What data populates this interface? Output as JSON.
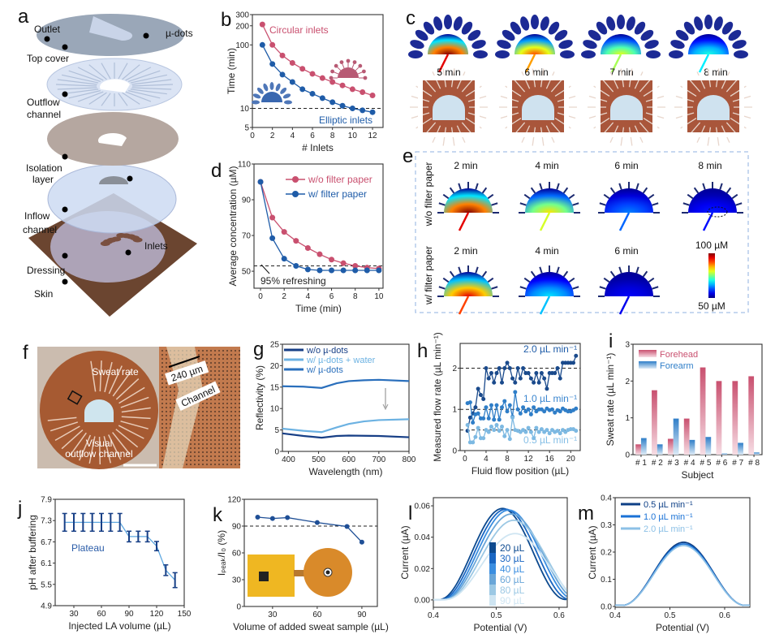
{
  "panel_a": {
    "panel": "a",
    "labels": [
      "Outlet",
      "µ-dots",
      "Top cover",
      "Outflow",
      "channel",
      "Isolation",
      "layer",
      "Inflow",
      "channel",
      "Inlets",
      "Dressing",
      "Skin"
    ]
  },
  "panel_c": {
    "panel": "c",
    "times": [
      "5 min",
      "6 min",
      "7 min",
      "8 min"
    ],
    "relative_intensity": [
      1.0,
      0.8,
      0.6,
      0.4
    ]
  },
  "panel_e": {
    "panel": "e",
    "row_labels": [
      "w/o filter paper",
      "w/ filter paper"
    ],
    "row1_times": [
      "2 min",
      "4 min",
      "6 min",
      "8 min"
    ],
    "row1_intensity": [
      1.0,
      0.65,
      0.25,
      0.15
    ],
    "row2_times": [
      "2 min",
      "4 min",
      "6 min"
    ],
    "row2_intensity": [
      0.9,
      0.35,
      0.12
    ],
    "colorbar_max": "100 µM",
    "colorbar_min": "50 µM"
  },
  "panel_f": {
    "panel": "f",
    "sweat_rate": "Sweat rate",
    "visual_line1": "Visual",
    "visual_line2": "outflow channel",
    "scale_label": "240 µm",
    "channel_label": "Channel"
  },
  "chart_data": [
    {
      "id": "b",
      "panel": "b",
      "type": "line",
      "xlabel": "# Inlets",
      "ylabel": "Time (min)",
      "yscale": "log",
      "xlim": [
        0,
        13.05
      ],
      "ylim": [
        5,
        300
      ],
      "xticks": [
        "0",
        "2",
        "4",
        "6",
        "8",
        "10",
        "12"
      ],
      "yticks": [
        "5",
        "10",
        "100",
        "200",
        "300"
      ],
      "reference_lines": [
        {
          "y": 10
        }
      ],
      "series": [
        {
          "name": "Circular inlets",
          "color": "#c9506f",
          "x": [
            1,
            2,
            3,
            4,
            5,
            6,
            7,
            8,
            9,
            10,
            11,
            12
          ],
          "y": [
            210,
            100,
            68,
            52,
            42,
            35,
            30,
            26,
            23,
            20,
            18,
            16
          ]
        },
        {
          "name": "Elliptic inlets",
          "color": "#1f5ca8",
          "x": [
            1,
            2,
            3,
            4,
            5,
            6,
            7,
            8,
            9,
            10,
            11,
            12
          ],
          "y": [
            100,
            50,
            34,
            26,
            20,
            17,
            14.5,
            12.5,
            11,
            10,
            9.3,
            8.7
          ]
        }
      ],
      "annotations": [
        {
          "text": "Circular inlets",
          "color": "#c9506f"
        },
        {
          "text": "Elliptic inlets",
          "color": "#1f5ca8"
        }
      ]
    },
    {
      "id": "d",
      "panel": "d",
      "type": "line",
      "xlabel": "Time (min)",
      "ylabel": "Average concentration (µM)",
      "xlim": [
        -0.55,
        10.35
      ],
      "ylim": [
        40.5,
        110
      ],
      "xticks": [
        "0",
        "2",
        "4",
        "6",
        "8",
        "10"
      ],
      "yticks": [
        "50",
        "70",
        "90",
        "110"
      ],
      "reference_lines": [
        {
          "y": 53
        }
      ],
      "series": [
        {
          "name": "w/o filter paper",
          "color": "#c9506f",
          "x": [
            0,
            1,
            2,
            3,
            4,
            5,
            6,
            7,
            8,
            9,
            10
          ],
          "y": [
            100,
            80,
            72,
            67,
            63,
            59.5,
            56.5,
            54.5,
            53,
            52,
            51.5
          ]
        },
        {
          "name": "w/ filter paper",
          "color": "#1f5ca8",
          "x": [
            0,
            1,
            2,
            3,
            4,
            5,
            6,
            7,
            8,
            9,
            10
          ],
          "y": [
            100,
            68.5,
            57,
            53,
            51,
            50.5,
            50.5,
            50.5,
            50.5,
            50.5,
            50.5
          ]
        }
      ],
      "legend": "top-right",
      "annotations": [
        {
          "text": "95% refreshing",
          "color": "#222222"
        }
      ]
    },
    {
      "id": "g",
      "panel": "g",
      "type": "line",
      "xlabel": "Wavelength (nm)",
      "ylabel": "Reflectivity (%)",
      "xlim": [
        380,
        800
      ],
      "ylim": [
        0,
        25
      ],
      "xticks": [
        "400",
        "500",
        "600",
        "700",
        "800"
      ],
      "yticks": [
        "0",
        "5",
        "10",
        "15",
        "20",
        "25"
      ],
      "series": [
        {
          "name": "w/o µ-dots",
          "color": "#173f86",
          "x": [
            380,
            450,
            510,
            560,
            600,
            700,
            800
          ],
          "y": [
            4.2,
            3.6,
            3.2,
            3.6,
            3.7,
            3.6,
            3.3
          ]
        },
        {
          "name": "w/ µ-dots + water",
          "color": "#6cb2e2",
          "x": [
            380,
            450,
            510,
            560,
            600,
            650,
            700,
            800
          ],
          "y": [
            5.3,
            4.8,
            4.5,
            5.6,
            6.4,
            7.0,
            7.3,
            7.5
          ]
        },
        {
          "name": "w/ µ-dots",
          "color": "#2a6fbc",
          "x": [
            380,
            450,
            510,
            560,
            600,
            650,
            700,
            800
          ],
          "y": [
            15.2,
            15.1,
            14.8,
            15.9,
            16.4,
            16.6,
            16.7,
            16.4
          ]
        }
      ],
      "legend": "top-left"
    },
    {
      "id": "h",
      "panel": "h",
      "type": "line",
      "xlabel": "Fluid flow position (µL)",
      "ylabel": "Measured flow rate (µL min⁻¹)",
      "xlim": [
        -0.9,
        21.8
      ],
      "ylim": [
        0,
        2.6
      ],
      "xticks": [
        "0",
        "4",
        "8",
        "12",
        "16",
        "20"
      ],
      "yticks": [
        "0",
        "1",
        "2"
      ],
      "reference_lines": [
        {
          "y": 2
        },
        {
          "y": 1
        },
        {
          "y": 0.5
        }
      ],
      "series": [
        {
          "name": "2.0 µL min⁻¹",
          "color": "#1a4a8c",
          "x": [
            0.5,
            1,
            1.5,
            2,
            2.5,
            3,
            3.5,
            4,
            4.5,
            5,
            5.5,
            6,
            6.5,
            7,
            7.5,
            8,
            8.5,
            9,
            9.5,
            10,
            10.5,
            11,
            11.5,
            12,
            12.5,
            13,
            13.5,
            14,
            14.5,
            15,
            15.5,
            16,
            16.5,
            17,
            17.5,
            18,
            18.5,
            19,
            19.5,
            20,
            20.5,
            21
          ],
          "y": [
            0.48,
            0.8,
            0.9,
            1.05,
            1.5,
            1.35,
            1.25,
            2.0,
            1.75,
            1.88,
            1.65,
            1.88,
            2.0,
            1.65,
            2.0,
            2.13,
            2.0,
            1.75,
            1.65,
            2.0,
            1.75,
            2.0,
            1.88,
            1.88,
            1.75,
            1.65,
            1.88,
            1.65,
            1.88,
            1.75,
            1.5,
            1.88,
            1.88,
            1.88,
            2.0,
            1.75,
            2.13,
            2.13,
            2.13,
            2.13,
            2.13,
            2.3
          ]
        },
        {
          "name": "1.0 µL min⁻¹",
          "color": "#2f7ec8",
          "x": [
            0.5,
            1,
            1.5,
            2,
            2.5,
            3,
            3.5,
            4,
            4.5,
            5,
            5.5,
            6,
            6.5,
            7,
            7.5,
            8,
            8.5,
            9,
            9.5,
            10,
            10.5,
            11,
            11.5,
            12,
            12.5,
            13,
            13.5,
            14,
            14.5,
            15,
            15.5,
            16,
            16.5,
            17,
            17.5,
            18,
            18.5,
            19,
            19.5,
            20,
            20.5,
            21
          ],
          "y": [
            1.15,
            1.17,
            0.68,
            0.88,
            0.9,
            0.78,
            0.78,
            1.05,
            0.78,
            1.1,
            0.75,
            1.1,
            0.75,
            1.05,
            1.2,
            0.95,
            1.1,
            0.82,
            1.42,
            1.0,
            0.9,
            1.05,
            0.95,
            1.0,
            0.88,
            1.05,
            0.95,
            1.0,
            1.0,
            0.95,
            1.02,
            0.98,
            1.0,
            0.92,
            0.98,
            0.95,
            1.02,
            0.98,
            0.95,
            0.95,
            0.98,
            1.02
          ]
        },
        {
          "name": "0.5 µL min⁻¹",
          "color": "#7db9e2",
          "x": [
            0.5,
            1,
            1.5,
            2,
            2.5,
            3,
            3.5,
            4,
            4.5,
            5,
            5.5,
            6,
            6.5,
            7,
            7.5,
            8,
            8.5,
            9,
            9.5,
            10,
            10.5,
            11,
            11.5,
            12,
            12.5,
            13,
            13.5,
            14,
            14.5,
            15,
            15.5,
            16,
            16.5,
            17,
            17.5,
            18,
            18.5,
            19,
            19.5,
            20,
            20.5,
            21
          ],
          "y": [
            0.62,
            0.2,
            0.2,
            0.33,
            0.55,
            0.3,
            0.3,
            0.5,
            0.45,
            0.58,
            0.5,
            0.62,
            0.48,
            0.58,
            0.35,
            0.5,
            0.28,
            0.8,
            0.5,
            0.48,
            0.45,
            0.5,
            0.45,
            0.55,
            0.45,
            0.3,
            0.55,
            0.45,
            0.52,
            0.45,
            0.5,
            0.42,
            0.5,
            0.45,
            0.48,
            0.42,
            0.5,
            0.45,
            0.5,
            0.52,
            0.52,
            0.48
          ]
        }
      ],
      "annotations": [
        {
          "text": "2.0 µL min⁻¹",
          "color": "#1f5ca8"
        },
        {
          "text": "1.0 µL min⁻¹",
          "color": "#3b86cf"
        },
        {
          "text": "0.5 µL min⁻¹",
          "color": "#86bfe6"
        }
      ]
    },
    {
      "id": "i",
      "panel": "i",
      "type": "bar",
      "xlabel": "Subject",
      "ylabel": "Sweat rate (µL min⁻¹)",
      "ylim": [
        0,
        3
      ],
      "categories": [
        "# 1",
        "# 2",
        "# 3",
        "# 4",
        "# 5",
        "# 6",
        "# 7",
        "# 8"
      ],
      "yticks": [
        "0",
        "1",
        "2",
        "3"
      ],
      "series": [
        {
          "name": "Forehead",
          "color": "#c9506f",
          "values": [
            0.28,
            1.75,
            0.43,
            0.98,
            2.37,
            2.0,
            2.0,
            2.13
          ]
        },
        {
          "name": "Forearm",
          "color": "#2f7ec8",
          "values": [
            0.45,
            0.28,
            0.98,
            0.4,
            0.48,
            0.03,
            0.32,
            0.06
          ]
        }
      ],
      "legend": "top-left"
    },
    {
      "id": "j",
      "panel": "j",
      "type": "errorbar",
      "xlabel": "Injected LA volume (µL)",
      "ylabel": "pH after buffering",
      "xlim": [
        9.7,
        150
      ],
      "ylim": [
        4.9,
        7.9
      ],
      "xticks": [
        "30",
        "60",
        "90",
        "120",
        "150"
      ],
      "yticks": [
        "4.9",
        "5.5",
        "6.1",
        "6.7",
        "7.3",
        "7.9"
      ],
      "series": [
        {
          "name": "pH",
          "color": "#173f86",
          "fit_color": "#5fa8e0",
          "x": [
            20,
            30,
            40,
            50,
            60,
            70,
            80,
            90,
            100,
            110,
            120,
            130,
            140
          ],
          "y": [
            7.25,
            7.25,
            7.25,
            7.25,
            7.25,
            7.25,
            7.25,
            6.85,
            6.85,
            6.85,
            6.58,
            5.9,
            5.62
          ],
          "err": [
            0.25,
            0.25,
            0.25,
            0.25,
            0.25,
            0.25,
            0.25,
            0.15,
            0.15,
            0.15,
            0.13,
            0.15,
            0.21
          ]
        }
      ],
      "annotations": [
        {
          "text": "Plateau",
          "color": "#2a5ca8"
        }
      ]
    },
    {
      "id": "k",
      "panel": "k",
      "type": "line",
      "xlabel": "Volume of added sweat sample (µL)",
      "ylabel": "Iₚₑₐₖ/I₀ (%)",
      "xlim": [
        11,
        100.4
      ],
      "ylim": [
        0,
        120
      ],
      "xticks": [
        "30",
        "60",
        "90"
      ],
      "yticks": [
        "0",
        "30",
        "60",
        "90",
        "120"
      ],
      "reference_lines": [
        {
          "y": 90
        }
      ],
      "series": [
        {
          "name": "Ipeak/I0",
          "color": "#1f4f96",
          "x": [
            20,
            30,
            40,
            60,
            80,
            90
          ],
          "y": [
            100,
            98.5,
            99.5,
            94,
            89.5,
            72
          ]
        }
      ]
    },
    {
      "id": "l",
      "panel": "l",
      "type": "curve",
      "xlabel": "Potential (V)",
      "ylabel": "Current (µA)",
      "xlim": [
        0.4,
        0.613
      ],
      "ylim": [
        -0.0047,
        0.0652
      ],
      "xticks": [
        "0.4",
        "0.5",
        "0.6"
      ],
      "yticks": [
        "0.00",
        "0.02",
        "0.04",
        "0.06"
      ],
      "series": [
        {
          "name": "20 µL",
          "color": "#0d4a8f",
          "peak_potential": 0.51,
          "peak_current": 0.058,
          "half_width": 0.1
        },
        {
          "name": "30 µL",
          "color": "#1a66c2",
          "peak_potential": 0.515,
          "peak_current": 0.0575,
          "half_width": 0.102
        },
        {
          "name": "40 µL",
          "color": "#3b8ee0",
          "peak_potential": 0.52,
          "peak_current": 0.057,
          "half_width": 0.104
        },
        {
          "name": "60 µL",
          "color": "#6aa6d8",
          "peak_potential": 0.524,
          "peak_current": 0.0545,
          "half_width": 0.106
        },
        {
          "name": "80 µL",
          "color": "#9cc8e4",
          "peak_potential": 0.528,
          "peak_current": 0.0505,
          "half_width": 0.108
        },
        {
          "name": "90 µL",
          "color": "#cfe5f2",
          "peak_potential": 0.53,
          "peak_current": 0.042,
          "half_width": 0.11
        }
      ],
      "legend": "center"
    },
    {
      "id": "m",
      "panel": "m",
      "type": "curve",
      "xlabel": "Potential (V)",
      "ylabel": "Current (µA)",
      "xlim": [
        0.4,
        0.646
      ],
      "ylim": [
        -0.003,
        0.4
      ],
      "xticks": [
        "0.4",
        "0.5",
        "0.6"
      ],
      "yticks": [
        "0.0",
        "0.1",
        "0.2",
        "0.3",
        "0.4"
      ],
      "series": [
        {
          "name": "0.5 µL min⁻¹",
          "color": "#0d3f86",
          "peak_potential": 0.525,
          "peak_current": 0.232,
          "half_width": 0.112
        },
        {
          "name": "1.0 µL min⁻¹",
          "color": "#1a72d6",
          "peak_potential": 0.525,
          "peak_current": 0.226,
          "half_width": 0.112
        },
        {
          "name": "2.0 µL min⁻¹",
          "color": "#8cc0e6",
          "peak_potential": 0.525,
          "peak_current": 0.22,
          "half_width": 0.112
        }
      ],
      "legend": "top-left"
    }
  ]
}
